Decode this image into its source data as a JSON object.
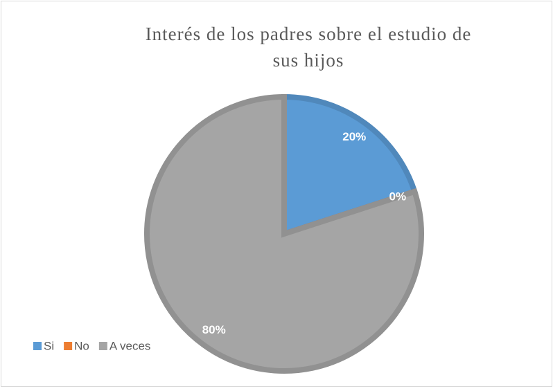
{
  "chart_data": {
    "type": "pie",
    "title": "Interés de los padres sobre el estudio de sus hijos",
    "categories": [
      "Si",
      "No",
      "A veces"
    ],
    "values": [
      20,
      0,
      80
    ],
    "value_labels": [
      "20%",
      "0%",
      "80%"
    ],
    "colors": [
      "#5b9bd5",
      "#ed7d31",
      "#a5a5a5"
    ],
    "legend": "bottom-left"
  }
}
